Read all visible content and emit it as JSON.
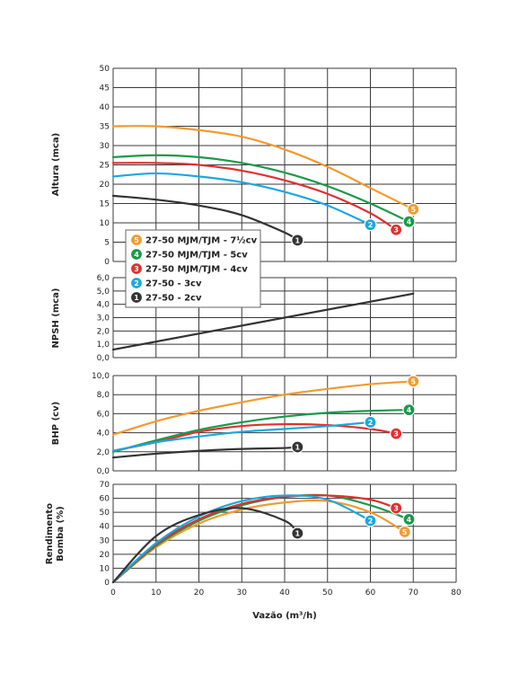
{
  "chart_data": {
    "type": "line",
    "x_axis": {
      "label": "Vazão (m³/h)",
      "range": [
        0,
        80
      ],
      "ticks": [
        "0",
        "10",
        "20",
        "30",
        "40",
        "50",
        "60",
        "70",
        "80"
      ]
    },
    "grid": true,
    "legend": {
      "placement": "left-middle",
      "entries": [
        {
          "badge": "5",
          "label": "27-50 MJM/TJM - 7½cv",
          "color": "#f39a2e"
        },
        {
          "badge": "4",
          "label": "27-50 MJM/TJM - 5cv",
          "color": "#1a9a4a"
        },
        {
          "badge": "3",
          "label": "27-50 MJM/TJM - 4cv",
          "color": "#e03030"
        },
        {
          "badge": "2",
          "label": "27-50 - 3cv",
          "color": "#1aa8e0"
        },
        {
          "badge": "1",
          "label": "27-50 - 2cv",
          "color": "#333333"
        }
      ]
    },
    "panels": [
      {
        "id": "altura",
        "ylabel": "Altura (mca)",
        "ylim": [
          0,
          50
        ],
        "yticks": [
          "0",
          "5",
          "10",
          "15",
          "20",
          "25",
          "30",
          "35",
          "40",
          "45",
          "50"
        ],
        "series": [
          {
            "badge": "5",
            "color": "#f39a2e",
            "x": [
              0,
              10,
              20,
              30,
              40,
              50,
              60,
              70
            ],
            "y": [
              35,
              35,
              34,
              32.3,
              29,
              24.5,
              19,
              13.5
            ]
          },
          {
            "badge": "4",
            "color": "#1a9a4a",
            "x": [
              0,
              10,
              20,
              30,
              40,
              50,
              60,
              69
            ],
            "y": [
              27,
              27.5,
              27,
              25.5,
              23,
              19.5,
              15,
              10.3
            ]
          },
          {
            "badge": "3",
            "color": "#e03030",
            "x": [
              0,
              10,
              20,
              30,
              40,
              50,
              60,
              66
            ],
            "y": [
              25.5,
              25.5,
              25,
              23.5,
              21,
              17.5,
              12.5,
              8.2
            ]
          },
          {
            "badge": "2",
            "color": "#1aa8e0",
            "x": [
              0,
              10,
              20,
              30,
              40,
              50,
              60
            ],
            "y": [
              22,
              22.8,
              22,
              20.5,
              18,
              14.5,
              9.5
            ]
          },
          {
            "badge": "1",
            "color": "#333333",
            "x": [
              0,
              10,
              20,
              30,
              40,
              43
            ],
            "y": [
              17,
              16,
              14.5,
              12,
              7.5,
              5.5
            ]
          }
        ]
      },
      {
        "id": "npsh",
        "ylabel": "NPSH (mca)",
        "ylim": [
          0,
          6
        ],
        "yticks": [
          "0,0",
          "1,0",
          "2,0",
          "3,0",
          "4,0",
          "5,0",
          "6,0"
        ],
        "series": [
          {
            "badge": "",
            "color": "#333333",
            "x": [
              0,
              70
            ],
            "y": [
              0.6,
              4.8
            ]
          }
        ]
      },
      {
        "id": "bhp",
        "ylabel": "BHP (cv)",
        "ylim": [
          0,
          10
        ],
        "yticks": [
          "0,0",
          "2,0",
          "4,0",
          "6,0",
          "8,0",
          "10,0"
        ],
        "series": [
          {
            "badge": "5",
            "color": "#f39a2e",
            "x": [
              0,
              10,
              20,
              30,
              40,
              50,
              60,
              70
            ],
            "y": [
              3.8,
              5.2,
              6.3,
              7.2,
              8.0,
              8.6,
              9.1,
              9.4
            ]
          },
          {
            "badge": "4",
            "color": "#1a9a4a",
            "x": [
              0,
              10,
              20,
              30,
              40,
              50,
              60,
              69
            ],
            "y": [
              2.0,
              3.2,
              4.3,
              5.1,
              5.7,
              6.1,
              6.3,
              6.4
            ]
          },
          {
            "badge": "3",
            "color": "#e03030",
            "x": [
              0,
              10,
              20,
              30,
              40,
              50,
              60,
              66
            ],
            "y": [
              2.1,
              3.0,
              4.1,
              4.7,
              4.9,
              4.8,
              4.4,
              3.9
            ]
          },
          {
            "badge": "2",
            "color": "#1aa8e0",
            "x": [
              0,
              10,
              20,
              30,
              40,
              50,
              60
            ],
            "y": [
              2.1,
              3.0,
              3.6,
              4.1,
              4.4,
              4.7,
              5.1
            ]
          },
          {
            "badge": "1",
            "color": "#333333",
            "x": [
              0,
              10,
              20,
              30,
              40,
              43
            ],
            "y": [
              1.4,
              1.8,
              2.1,
              2.3,
              2.4,
              2.5
            ]
          }
        ]
      },
      {
        "id": "rendimento",
        "ylabel": "Rendimento Bomba (%)",
        "ylim": [
          0,
          70
        ],
        "yticks": [
          "0",
          "10",
          "20",
          "30",
          "40",
          "50",
          "60",
          "70"
        ],
        "series": [
          {
            "badge": "5",
            "color": "#f39a2e",
            "x": [
              0,
              10,
              20,
              30,
              40,
              50,
              60,
              68
            ],
            "y": [
              0,
              25,
              42,
              52,
              57,
              58,
              50,
              36
            ]
          },
          {
            "badge": "4",
            "color": "#1a9a4a",
            "x": [
              0,
              10,
              20,
              30,
              40,
              50,
              60,
              69
            ],
            "y": [
              0,
              26,
              44,
              55,
              61,
              62,
              55,
              45
            ]
          },
          {
            "badge": "3",
            "color": "#e03030",
            "x": [
              0,
              10,
              20,
              30,
              40,
              50,
              60,
              66
            ],
            "y": [
              0,
              27,
              45,
              56,
              61,
              62,
              59,
              53
            ]
          },
          {
            "badge": "2",
            "color": "#1aa8e0",
            "x": [
              0,
              10,
              20,
              30,
              40,
              50,
              60
            ],
            "y": [
              0,
              28,
              47,
              58,
              62,
              59,
              44
            ]
          },
          {
            "badge": "1",
            "color": "#333333",
            "x": [
              0,
              10,
              20,
              30,
              40,
              43
            ],
            "y": [
              0,
              33,
              48,
              53,
              44,
              35
            ]
          }
        ]
      }
    ]
  }
}
